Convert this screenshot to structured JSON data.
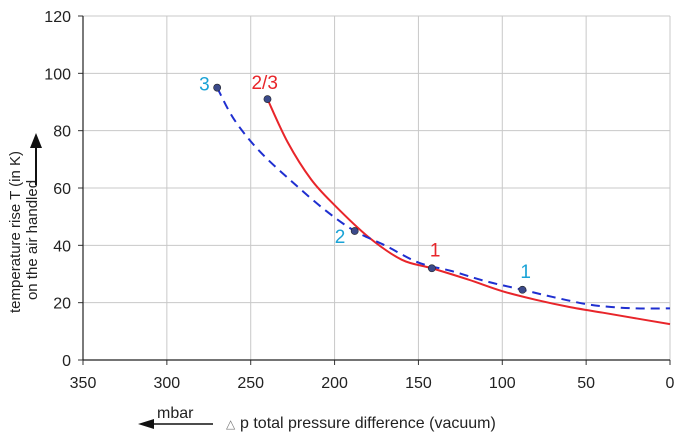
{
  "chart_data": {
    "type": "line",
    "xlabel": "p total pressure difference (vacuum)",
    "xlabel_symbol": "△",
    "x_unit": "mbar",
    "ylabel_lines": [
      "temperature rise T (in K)",
      "on the air handled"
    ],
    "xlim": [
      350,
      0
    ],
    "ylim": [
      0,
      120
    ],
    "x_ticks": [
      350,
      300,
      250,
      200,
      150,
      100,
      50,
      0
    ],
    "y_ticks": [
      0,
      20,
      40,
      60,
      80,
      100,
      120
    ],
    "grid": true,
    "series": [
      {
        "color": "#e8252a",
        "style": "solid",
        "x": [
          240,
          228,
          214,
          200,
          180,
          160,
          142,
          120,
          100,
          80,
          60,
          40,
          20,
          0
        ],
        "y": [
          91,
          76,
          63,
          54,
          43,
          35,
          32,
          28,
          24,
          21,
          18.5,
          16.5,
          14.5,
          12.5
        ],
        "points": [
          {
            "label": "2/3",
            "x": 240,
            "y": 91
          },
          {
            "label": "1",
            "x": 142,
            "y": 32
          }
        ]
      },
      {
        "color": "#1f2fd0",
        "style": "dashed",
        "x": [
          270,
          260,
          245,
          225,
          205,
          188,
          170,
          150,
          130,
          110,
          88,
          70,
          50,
          35,
          20,
          0
        ],
        "y": [
          95,
          84,
          73,
          62,
          52,
          45,
          40,
          34,
          31,
          27.5,
          24.5,
          22,
          19.5,
          18.5,
          18,
          18
        ],
        "points": [
          {
            "label": "3",
            "x": 270,
            "y": 95
          },
          {
            "label": "2",
            "x": 188,
            "y": 45
          },
          {
            "label": "1",
            "x": 88,
            "y": 24.5
          }
        ]
      }
    ],
    "label_colors": {
      "red": "#e8252a",
      "cyan": "#1aa3d6"
    }
  }
}
